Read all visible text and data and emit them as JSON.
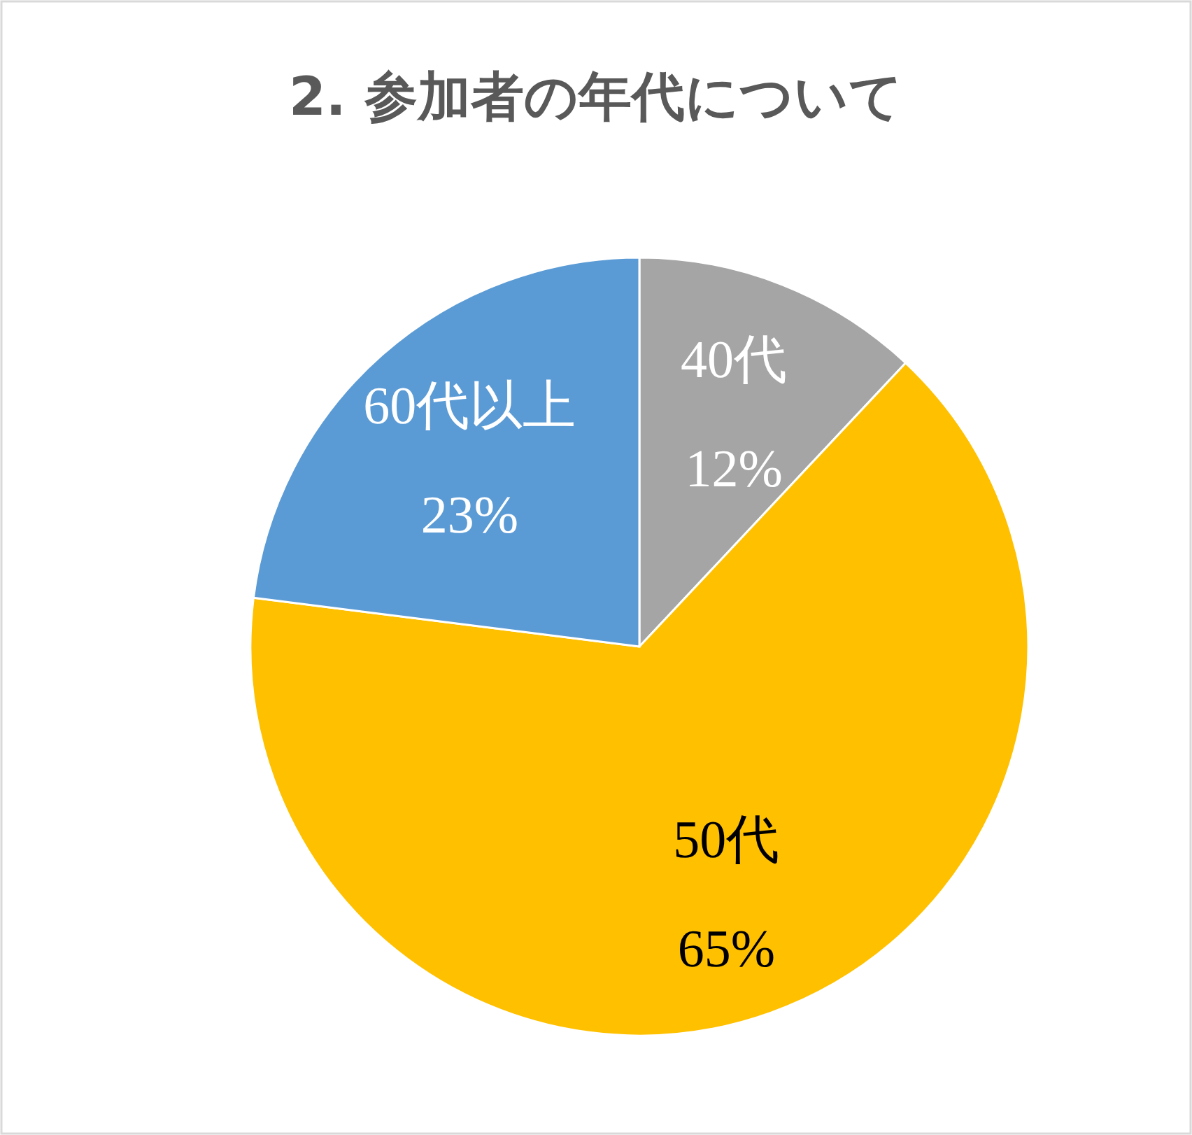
{
  "chart_data": {
    "type": "pie",
    "title": "2. 参加者の年代について",
    "categories": [
      "40代",
      "50代",
      "60代以上"
    ],
    "values": [
      12,
      65,
      23
    ],
    "value_labels": [
      "12%",
      "65%",
      "23%"
    ],
    "colors": [
      "#a5a5a5",
      "#ffc000",
      "#5b9bd5"
    ],
    "legend": false
  }
}
